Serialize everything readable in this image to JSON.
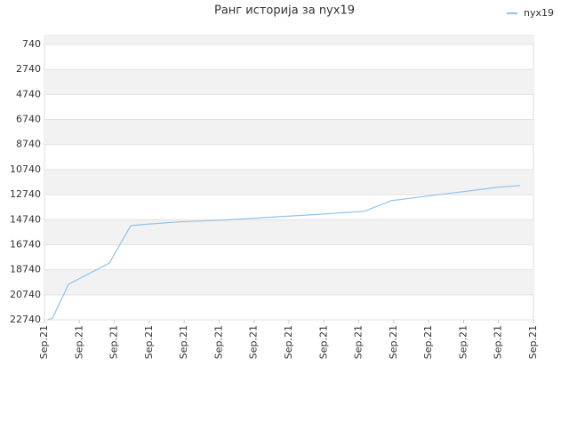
{
  "chart_data": {
    "type": "line",
    "title": "Ранг историја за nyx19",
    "x": [
      0.1,
      0.23,
      0.69,
      1.86,
      2.47,
      2.8,
      3.82,
      5.09,
      6.36,
      7.64,
      8.4,
      9.16,
      9.93,
      10.94,
      11.96,
      12.98,
      13.62
    ],
    "series": [
      {
        "name": "nyx19",
        "color": "#90c3ee",
        "values": [
          22740,
          22600,
          19900,
          18200,
          15220,
          15130,
          14920,
          14780,
          14560,
          14350,
          14210,
          14070,
          13220,
          12860,
          12510,
          12150,
          12010
        ]
      }
    ],
    "xlim": [
      0,
      14
    ],
    "xticks": [
      {
        "value": 0,
        "label": "Sep.21"
      },
      {
        "value": 1,
        "label": "Sep.21"
      },
      {
        "value": 2,
        "label": "Sep.21"
      },
      {
        "value": 3,
        "label": "Sep.21"
      },
      {
        "value": 4,
        "label": "Sep.21"
      },
      {
        "value": 5,
        "label": "Sep.21"
      },
      {
        "value": 6,
        "label": "Sep.21"
      },
      {
        "value": 7,
        "label": "Sep.21"
      },
      {
        "value": 8,
        "label": "Sep.21"
      },
      {
        "value": 9,
        "label": "Sep.21"
      },
      {
        "value": 10,
        "label": "Sep.21"
      },
      {
        "value": 11,
        "label": "Sep.21"
      },
      {
        "value": 12,
        "label": "Sep.21"
      },
      {
        "value": 13,
        "label": "Sep.21"
      },
      {
        "value": 14,
        "label": "Sep.21"
      }
    ],
    "ylim": [
      22740,
      30
    ],
    "yticks": [
      740,
      2740,
      4740,
      6740,
      8740,
      10740,
      12740,
      14740,
      16740,
      18740,
      20740,
      22740
    ],
    "grid": true,
    "legend": "top-right"
  }
}
